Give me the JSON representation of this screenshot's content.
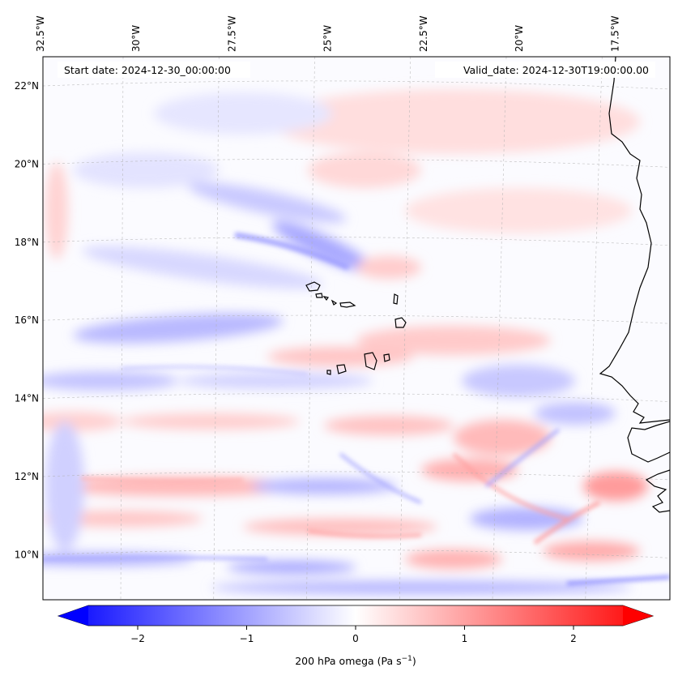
{
  "map": {
    "start_date_label": "Start date: 2024-12-30_00:00:00",
    "valid_date_label": "Valid_date: 2024-12-30T19:00:00.00",
    "lon_ticks": [
      {
        "value": -32.5,
        "label": "32.5°W"
      },
      {
        "value": -30,
        "label": "30°W"
      },
      {
        "value": -27.5,
        "label": "27.5°W"
      },
      {
        "value": -25,
        "label": "25°W"
      },
      {
        "value": -22.5,
        "label": "22.5°W"
      },
      {
        "value": -20,
        "label": "20°W"
      },
      {
        "value": -17.5,
        "label": "17.5°W"
      }
    ],
    "lat_ticks": [
      {
        "value": 22,
        "label": "22°N"
      },
      {
        "value": 20,
        "label": "20°N"
      },
      {
        "value": 18,
        "label": "18°N"
      },
      {
        "value": 16,
        "label": "16°N"
      },
      {
        "value": 14,
        "label": "14°N"
      },
      {
        "value": 12,
        "label": "12°N"
      },
      {
        "value": 10,
        "label": "10°N"
      }
    ],
    "features": [
      "Cape Verde islands",
      "West African coastline (Senegal, Mauritania)"
    ],
    "colors": {
      "positive": "#ff0000",
      "negative": "#0000ff",
      "neutral": "#ffffff",
      "coastline": "#000000"
    }
  },
  "colorbar": {
    "label": "200 hPa omega (Pa s",
    "label_superscript": "−1",
    "label_suffix": ")",
    "ticks": [
      {
        "value": -2,
        "label": "−2"
      },
      {
        "value": -1,
        "label": "−1"
      },
      {
        "value": 0,
        "label": "0"
      },
      {
        "value": 1,
        "label": "1"
      },
      {
        "value": 2,
        "label": "2"
      }
    ],
    "vmin": -2.6,
    "vmax": 2.6,
    "extend": "both",
    "cmap": "bwr"
  }
}
